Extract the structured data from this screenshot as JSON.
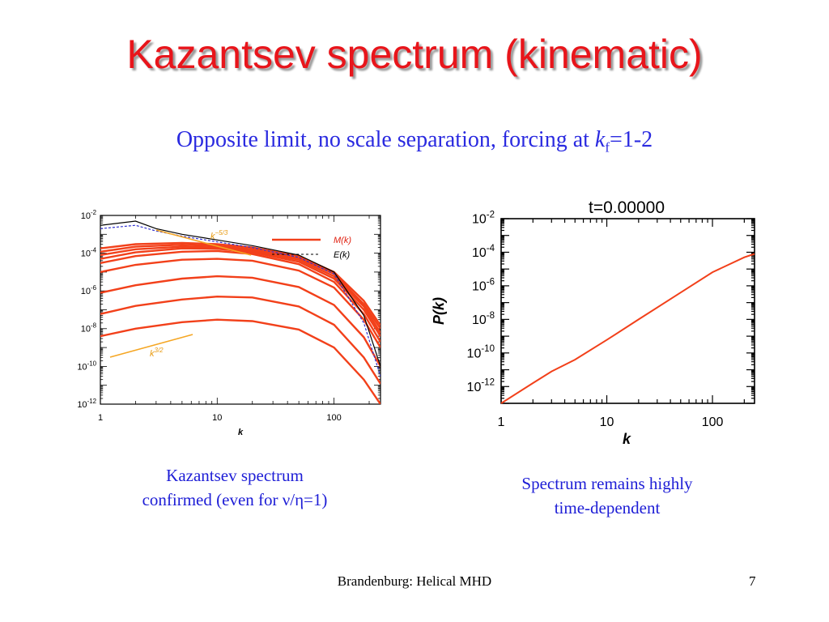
{
  "slide": {
    "title": "Kazantsev spectrum (kinematic)",
    "subtitle_main": "Opposite limit, no scale separation, forcing at ",
    "subtitle_var": "k",
    "subtitle_sub": "f",
    "subtitle_tail": "=1-2",
    "caption_left": [
      "Kazantsev spectrum",
      "confirmed (even for ν/η=1)"
    ],
    "caption_right": [
      "Spectrum remains highly",
      "time-dependent"
    ],
    "footer": "Brandenburg: Helical MHD",
    "page_number": "7"
  },
  "colors": {
    "title": "#e8151b",
    "text_blue": "#1d1dd6",
    "curve_red": "#f2401a",
    "guide_orange": "#f5a623",
    "dashed_blue": "#3030d0"
  },
  "chart_data": [
    {
      "type": "line",
      "xscale": "log",
      "yscale": "log",
      "xlim": [
        1,
        250
      ],
      "ylim": [
        1e-12,
        0.01
      ],
      "xlabel": "k",
      "ylabel": "",
      "xtick_labels": [
        "1",
        "10",
        "100"
      ],
      "ytick_labels": [
        "10⁻²",
        "10⁻⁴",
        "10⁻⁶",
        "10⁻⁸",
        "10⁻¹⁰",
        "10⁻¹²"
      ],
      "legend_position": "top-right",
      "legend": [
        "M(k)",
        "E(k)"
      ],
      "annotations": [
        "k⁻⁵ᐟ³",
        "k³ᐟ²"
      ],
      "annotation_slopes": [
        -1.6667,
        1.5
      ],
      "series": [
        {
          "name": "M(k)",
          "style": "red-solid",
          "x": [
            1,
            2,
            5,
            10,
            20,
            50,
            100,
            180,
            250
          ],
          "y": [
            4e-09,
            1e-08,
            2.2e-08,
            3e-08,
            2.5e-08,
            9e-09,
            1e-09,
            2e-11,
            1e-12
          ]
        },
        {
          "style": "red-solid",
          "x": [
            1,
            2,
            5,
            10,
            20,
            50,
            100,
            180,
            250
          ],
          "y": [
            6e-08,
            1.6e-07,
            3.5e-07,
            5e-07,
            4.5e-07,
            1.5e-07,
            1.6e-08,
            3e-10,
            1.2e-11
          ]
        },
        {
          "style": "red-solid",
          "x": [
            1,
            2,
            5,
            10,
            20,
            50,
            100,
            180,
            250
          ],
          "y": [
            8e-07,
            2e-06,
            4.5e-06,
            6e-06,
            5e-06,
            1.6e-06,
            1.8e-07,
            3.5e-09,
            1e-10
          ]
        },
        {
          "style": "red-solid",
          "x": [
            1,
            2,
            5,
            10,
            20,
            50,
            100,
            180,
            250
          ],
          "y": [
            1e-05,
            2.4e-05,
            4.5e-05,
            5e-05,
            4e-05,
            1.2e-05,
            1.5e-06,
            3e-08,
            1e-09
          ]
        },
        {
          "style": "red-solid",
          "x": [
            1,
            2,
            5,
            10,
            20,
            50,
            100,
            180,
            250
          ],
          "y": [
            3e-05,
            7e-05,
            0.00012,
            0.00013,
            9e-05,
            2.6e-05,
            3e-06,
            6e-08,
            2e-09
          ]
        },
        {
          "style": "red-solid",
          "x": [
            1,
            2,
            5,
            10,
            20,
            50,
            100,
            180,
            250
          ],
          "y": [
            5e-05,
            0.00011,
            0.00018,
            0.00017,
            0.00011,
            3.5e-05,
            4.5e-06,
            1e-07,
            4e-09
          ]
        },
        {
          "style": "red-solid",
          "x": [
            1,
            2,
            5,
            10,
            20,
            50,
            100,
            180,
            250
          ],
          "y": [
            8e-05,
            0.00016,
            0.00022,
            0.0002,
            0.00013,
            4.5e-05,
            6e-06,
            1.5e-07,
            6e-09
          ]
        },
        {
          "style": "red-solid",
          "x": [
            1,
            2,
            5,
            10,
            20,
            50,
            100,
            180,
            250
          ],
          "y": [
            0.00012,
            0.00022,
            0.00028,
            0.00024,
            0.00016,
            5.5e-05,
            8e-06,
            2e-07,
            1e-08
          ]
        },
        {
          "style": "red-solid",
          "x": [
            1,
            2,
            5,
            10,
            20,
            50,
            100,
            180,
            250
          ],
          "y": [
            0.00018,
            0.0003,
            0.00035,
            0.0003,
            0.0002,
            7e-05,
            1e-05,
            3e-07,
            1.5e-08
          ]
        },
        {
          "name": "E(k)",
          "style": "black-solid",
          "x": [
            1,
            2,
            3,
            5,
            10,
            20,
            50,
            100,
            180,
            250
          ],
          "y": [
            0.003,
            0.005,
            0.002,
            0.001,
            0.0005,
            0.00025,
            8e-05,
            1e-05,
            5e-08,
            1e-10
          ]
        },
        {
          "style": "blue-dashed",
          "x": [
            1,
            2,
            3,
            5,
            10,
            20,
            50,
            100,
            180,
            250
          ],
          "y": [
            0.002,
            0.003,
            0.0015,
            0.0008,
            0.0004,
            0.0002,
            6e-05,
            8e-06,
            2e-08,
            3e-11
          ]
        }
      ]
    },
    {
      "type": "line",
      "title": "t=0.00000",
      "xscale": "log",
      "yscale": "log",
      "xlim": [
        1,
        250
      ],
      "ylim": [
        1e-13,
        0.01
      ],
      "xlabel": "k",
      "ylabel": "P(k)",
      "xtick_labels": [
        "1",
        "10",
        "100"
      ],
      "ytick_labels": [
        "10⁻²",
        "10⁻⁴",
        "10⁻⁶",
        "10⁻⁸",
        "10⁻¹⁰",
        "10⁻¹²"
      ],
      "series": [
        {
          "style": "red-solid",
          "x": [
            1,
            2,
            3,
            5,
            10,
            20,
            50,
            100,
            200,
            250
          ],
          "y": [
            1e-13,
            1.6e-12,
            8e-12,
            4e-11,
            6e-10,
            1e-08,
            4e-07,
            6.5e-06,
            5e-05,
            8e-05
          ]
        }
      ]
    }
  ]
}
